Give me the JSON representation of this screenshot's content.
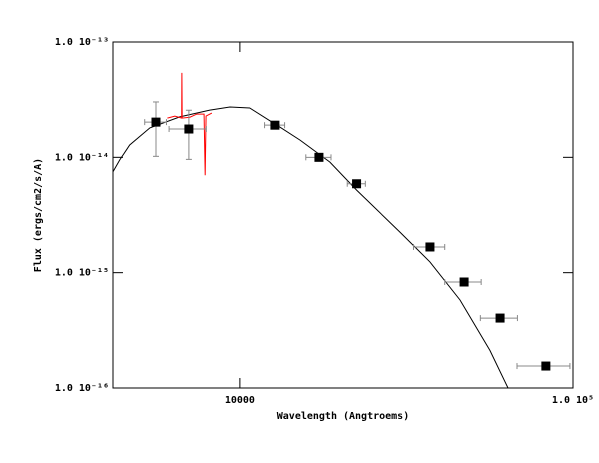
{
  "chart_data": {
    "type": "scatter",
    "xlabel": "Wavelength (Angtroems)",
    "ylabel": "Flux (ergs/cm2/s/A)",
    "xscale": "log",
    "yscale": "log",
    "xlim": [
      4160,
      100000
    ],
    "ylim": [
      1e-16,
      1e-13
    ],
    "xticks": [
      10000,
      {
        "value": 100000,
        "label": "1.0 10⁵"
      }
    ],
    "yticks": [
      {
        "value": 1e-16,
        "label": "1.0 10⁻¹⁶"
      },
      {
        "value": 1e-15,
        "label": "1.0 10⁻¹⁵"
      },
      {
        "value": 1e-14,
        "label": "1.0 10⁻¹⁴"
      },
      {
        "value": 1e-13,
        "label": "1.0 10⁻¹³"
      }
    ],
    "points": {
      "color": "#000000",
      "errcolor": "#888888",
      "x": [
        5600,
        7030,
        12740,
        17270,
        22400,
        37200,
        47100,
        60400,
        82900
      ],
      "values": [
        2.02e-14,
        1.76e-14,
        1.9e-14,
        1e-14,
        5.9e-15,
        1.67e-15,
        8.3e-16,
        4.04e-16,
        1.55e-16
      ],
      "xerr": [
        420,
        900,
        880,
        1500,
        1400,
        4000,
        5900,
        7700,
        15000
      ],
      "yerr": [
        1e-14,
        8e-15,
        null,
        null,
        null,
        null,
        null,
        null,
        null
      ]
    },
    "model": {
      "color": "#000000",
      "x": [
        4160,
        4360,
        4670,
        5370,
        6600,
        8130,
        9330,
        10700,
        12740,
        15150,
        18630,
        22400,
        30200,
        37200,
        45800,
        56300,
        63800
      ],
      "values": [
        7.5e-15,
        9.5e-15,
        1.28e-14,
        1.8e-14,
        2.24e-14,
        2.57e-14,
        2.73e-14,
        2.68e-14,
        1.95e-14,
        1.41e-14,
        9.1e-15,
        5.2e-15,
        2.25e-15,
        1.24e-15,
        5.8e-16,
        2.12e-16,
        1e-16
      ]
    },
    "spectrum": {
      "color": "#ff0000",
      "x": [
        6060,
        6380,
        6690,
        6700,
        6710,
        7080,
        7430,
        7810,
        7870,
        7920,
        8240
      ],
      "values": [
        2.19e-14,
        2.28e-14,
        2.19e-14,
        5.4e-14,
        2.19e-14,
        2.23e-14,
        2.37e-14,
        2.37e-14,
        7e-15,
        2.28e-14,
        2.42e-14
      ]
    }
  }
}
